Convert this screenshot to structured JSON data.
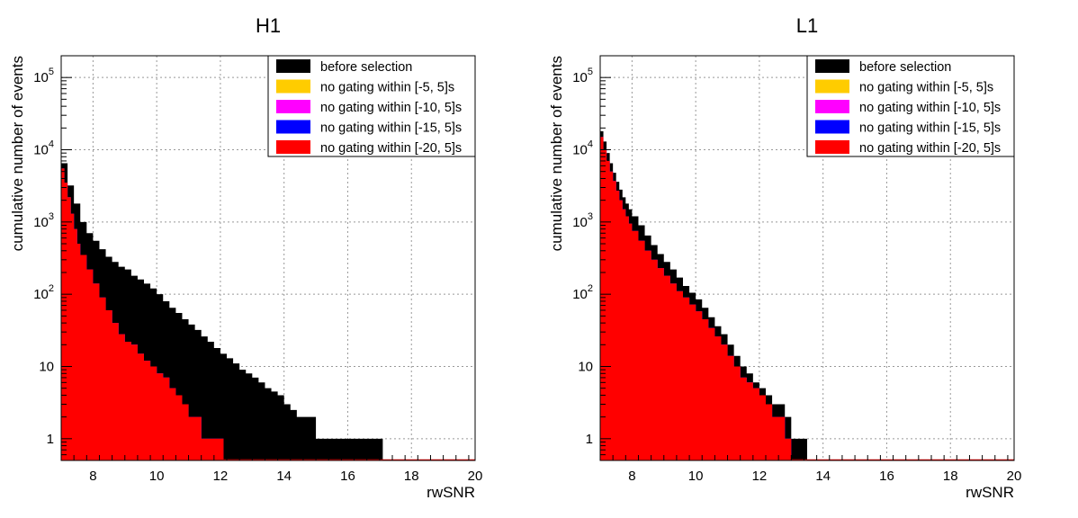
{
  "colors": {
    "before": "#000000",
    "gate5": "#ffcc00",
    "gate10": "#ff00ff",
    "gate15": "#0000ff",
    "gate20": "#ff0000",
    "grid": "#999999"
  },
  "chart_data": [
    {
      "type": "area",
      "title": "H1",
      "xlabel": "rwSNR",
      "ylabel": "cumulative number of events",
      "xlim": [
        7,
        20
      ],
      "ylim": [
        0.5,
        200000
      ],
      "yscale": "log",
      "grid": true,
      "legend_position": "top-right",
      "xticks": [
        8,
        10,
        12,
        14,
        16,
        18,
        20
      ],
      "yticks": [
        {
          "value": 1,
          "label": "1"
        },
        {
          "value": 10,
          "label": "10"
        },
        {
          "value": 100,
          "label": "10",
          "exp": "2"
        },
        {
          "value": 1000,
          "label": "10",
          "exp": "3"
        },
        {
          "value": 10000,
          "label": "10",
          "exp": "4"
        },
        {
          "value": 100000,
          "label": "10",
          "exp": "5"
        }
      ],
      "series": [
        {
          "name": "before selection",
          "color_key": "before",
          "step_x": [
            7,
            7.2,
            7.4,
            7.6,
            7.8,
            8,
            8.2,
            8.4,
            8.6,
            8.8,
            9,
            9.2,
            9.4,
            9.6,
            9.8,
            10,
            10.2,
            10.4,
            10.6,
            10.8,
            11,
            11.2,
            11.4,
            11.6,
            11.8,
            12,
            12.2,
            12.4,
            12.6,
            12.8,
            13,
            13.2,
            13.4,
            13.6,
            13.8,
            14,
            14.2,
            14.4,
            14.6,
            14.8,
            15,
            15.2,
            15.6,
            16,
            16.4,
            16.8,
            17.1
          ],
          "y": [
            6500,
            3200,
            1800,
            1000,
            700,
            550,
            420,
            330,
            280,
            240,
            220,
            180,
            160,
            140,
            120,
            100,
            80,
            65,
            55,
            45,
            38,
            32,
            26,
            22,
            18,
            15,
            13,
            11,
            9,
            8,
            7,
            6,
            5,
            4.5,
            4,
            3,
            2.5,
            2,
            2,
            2,
            1,
            1,
            1,
            1,
            1,
            1
          ]
        },
        {
          "name": "no gating within [-5, 5]s",
          "color_key": "gate5",
          "step_x": [
            7,
            7.1,
            7.2,
            7.3,
            7.4,
            7.5,
            7.6,
            7.8,
            8,
            8.2,
            8.4,
            8.6,
            8.8,
            9,
            9.2,
            9.4,
            9.6,
            9.8,
            10,
            10.2,
            10.4,
            10.6,
            10.8,
            11,
            11.2,
            11.4,
            11.6,
            11.8,
            12,
            12.1
          ],
          "y": [
            5500,
            3500,
            2200,
            1300,
            800,
            500,
            350,
            220,
            140,
            90,
            60,
            40,
            28,
            22,
            20,
            15,
            12,
            10,
            8,
            7,
            5,
            4,
            3,
            2,
            2,
            1,
            1,
            1,
            1
          ]
        },
        {
          "name": "no gating within [-10, 5]s",
          "color_key": "gate10",
          "step_x": [
            7,
            7.1,
            7.2,
            7.3,
            7.4,
            7.5,
            7.6,
            7.8,
            8,
            8.2,
            8.4,
            8.6,
            8.8,
            9,
            9.2,
            9.4,
            9.6,
            9.8,
            10,
            10.2,
            10.4,
            10.6,
            10.8,
            11,
            11.2,
            11.4,
            11.6,
            11.8,
            12,
            12.1
          ],
          "y": [
            5500,
            3500,
            2200,
            1300,
            800,
            500,
            350,
            220,
            140,
            90,
            60,
            40,
            28,
            22,
            20,
            15,
            12,
            10,
            8,
            7,
            5,
            4,
            3,
            2,
            2,
            1,
            1,
            1,
            1
          ]
        },
        {
          "name": "no gating within [-15, 5]s",
          "color_key": "gate15",
          "step_x": [
            7,
            7.1,
            7.2,
            7.3,
            7.4,
            7.5,
            7.6,
            7.8,
            8,
            8.2,
            8.4,
            8.6,
            8.8,
            9,
            9.2,
            9.4,
            9.6,
            9.8,
            10,
            10.2,
            10.4,
            10.6,
            10.8,
            11,
            11.2,
            11.4,
            11.6,
            11.8,
            12,
            12.1
          ],
          "y": [
            5500,
            3500,
            2200,
            1300,
            800,
            500,
            350,
            220,
            140,
            90,
            60,
            40,
            28,
            22,
            20,
            15,
            12,
            10,
            8,
            7,
            5,
            4,
            3,
            2,
            2,
            1,
            1,
            1,
            1
          ]
        },
        {
          "name": "no gating within [-20, 5]s",
          "color_key": "gate20",
          "step_x": [
            7,
            7.1,
            7.2,
            7.3,
            7.4,
            7.5,
            7.6,
            7.8,
            8,
            8.2,
            8.4,
            8.6,
            8.8,
            9,
            9.2,
            9.4,
            9.6,
            9.8,
            10,
            10.2,
            10.4,
            10.6,
            10.8,
            11,
            11.2,
            11.4,
            11.6,
            11.8,
            12,
            12.1
          ],
          "y": [
            5500,
            3500,
            2200,
            1300,
            800,
            500,
            350,
            220,
            140,
            90,
            60,
            40,
            28,
            22,
            20,
            15,
            12,
            10,
            8,
            7,
            5,
            4,
            3,
            2,
            2,
            1,
            1,
            1,
            1
          ]
        }
      ]
    },
    {
      "type": "area",
      "title": "L1",
      "xlabel": "rwSNR",
      "ylabel": "cumulative number of events",
      "xlim": [
        7,
        20
      ],
      "ylim": [
        0.5,
        200000
      ],
      "yscale": "log",
      "grid": true,
      "legend_position": "top-right",
      "xticks": [
        8,
        10,
        12,
        14,
        16,
        18,
        20
      ],
      "yticks": [
        {
          "value": 1,
          "label": "1"
        },
        {
          "value": 10,
          "label": "10"
        },
        {
          "value": 100,
          "label": "10",
          "exp": "2"
        },
        {
          "value": 1000,
          "label": "10",
          "exp": "3"
        },
        {
          "value": 10000,
          "label": "10",
          "exp": "4"
        },
        {
          "value": 100000,
          "label": "10",
          "exp": "5"
        }
      ],
      "series": [
        {
          "name": "before selection",
          "color_key": "before",
          "step_x": [
            7,
            7.1,
            7.2,
            7.3,
            7.4,
            7.5,
            7.6,
            7.7,
            7.8,
            7.9,
            8,
            8.2,
            8.4,
            8.6,
            8.8,
            9,
            9.2,
            9.4,
            9.6,
            9.8,
            10,
            10.2,
            10.4,
            10.6,
            10.8,
            11,
            11.2,
            11.4,
            11.6,
            11.8,
            12,
            12.2,
            12.4,
            12.6,
            12.8,
            13,
            13.2,
            13.5
          ],
          "y": [
            18000,
            13000,
            9000,
            6500,
            4800,
            3600,
            2800,
            2200,
            1800,
            1500,
            1200,
            900,
            650,
            480,
            360,
            280,
            220,
            170,
            130,
            105,
            85,
            65,
            48,
            36,
            28,
            20,
            14,
            10,
            8,
            6,
            5,
            4,
            3,
            3,
            2,
            1,
            1
          ]
        },
        {
          "name": "no gating within [-5, 5]s",
          "color_key": "gate5",
          "step_x": [
            7,
            7.1,
            7.2,
            7.3,
            7.4,
            7.5,
            7.6,
            7.7,
            7.8,
            7.9,
            8,
            8.2,
            8.4,
            8.6,
            8.8,
            9,
            9.2,
            9.4,
            9.6,
            9.8,
            10,
            10.2,
            10.4,
            10.6,
            10.8,
            11,
            11.2,
            11.4,
            11.6,
            11.8,
            12,
            12.2,
            12.4,
            12.6,
            12.8,
            13
          ],
          "y": [
            15000,
            10000,
            7000,
            5000,
            3700,
            2700,
            2000,
            1500,
            1200,
            950,
            750,
            550,
            400,
            300,
            230,
            180,
            140,
            110,
            90,
            72,
            58,
            45,
            34,
            26,
            20,
            14,
            10,
            7,
            6,
            5,
            4,
            3,
            2,
            2,
            1
          ]
        },
        {
          "name": "no gating within [-10, 5]s",
          "color_key": "gate10",
          "step_x": [
            7,
            7.1,
            7.2,
            7.3,
            7.4,
            7.5,
            7.6,
            7.7,
            7.8,
            7.9,
            8,
            8.2,
            8.4,
            8.6,
            8.8,
            9,
            9.2,
            9.4,
            9.6,
            9.8,
            10,
            10.2,
            10.4,
            10.6,
            10.8,
            11,
            11.2,
            11.4,
            11.6,
            11.8,
            12,
            12.2,
            12.4,
            12.6,
            12.8,
            13
          ],
          "y": [
            15000,
            10000,
            7000,
            5000,
            3700,
            2700,
            2000,
            1500,
            1200,
            950,
            750,
            550,
            400,
            300,
            230,
            180,
            140,
            110,
            90,
            72,
            58,
            45,
            34,
            26,
            20,
            14,
            10,
            7,
            6,
            5,
            4,
            3,
            2,
            2,
            1
          ]
        },
        {
          "name": "no gating within [-15, 5]s",
          "color_key": "gate15",
          "step_x": [
            7,
            7.1,
            7.2,
            7.3,
            7.4,
            7.5,
            7.6,
            7.7,
            7.8,
            7.9,
            8,
            8.2,
            8.4,
            8.6,
            8.8,
            9,
            9.2,
            9.4,
            9.6,
            9.8,
            10,
            10.2,
            10.4,
            10.6,
            10.8,
            11,
            11.2,
            11.4,
            11.6,
            11.8,
            12,
            12.2,
            12.4,
            12.6,
            12.8,
            13
          ],
          "y": [
            15000,
            10000,
            7000,
            5000,
            3700,
            2700,
            2000,
            1500,
            1200,
            950,
            750,
            550,
            400,
            300,
            230,
            180,
            140,
            110,
            90,
            72,
            58,
            45,
            34,
            26,
            20,
            14,
            10,
            7,
            6,
            5,
            4,
            3,
            2,
            2,
            1
          ]
        },
        {
          "name": "no gating within [-20, 5]s",
          "color_key": "gate20",
          "step_x": [
            7,
            7.1,
            7.2,
            7.3,
            7.4,
            7.5,
            7.6,
            7.7,
            7.8,
            7.9,
            8,
            8.2,
            8.4,
            8.6,
            8.8,
            9,
            9.2,
            9.4,
            9.6,
            9.8,
            10,
            10.2,
            10.4,
            10.6,
            10.8,
            11,
            11.2,
            11.4,
            11.6,
            11.8,
            12,
            12.2,
            12.4,
            12.6,
            12.8,
            13
          ],
          "y": [
            15000,
            10000,
            7000,
            5000,
            3700,
            2700,
            2000,
            1500,
            1200,
            950,
            750,
            550,
            400,
            300,
            230,
            180,
            140,
            110,
            90,
            72,
            58,
            45,
            34,
            26,
            20,
            14,
            10,
            7,
            6,
            5,
            4,
            3,
            2,
            2,
            1
          ]
        }
      ]
    }
  ]
}
